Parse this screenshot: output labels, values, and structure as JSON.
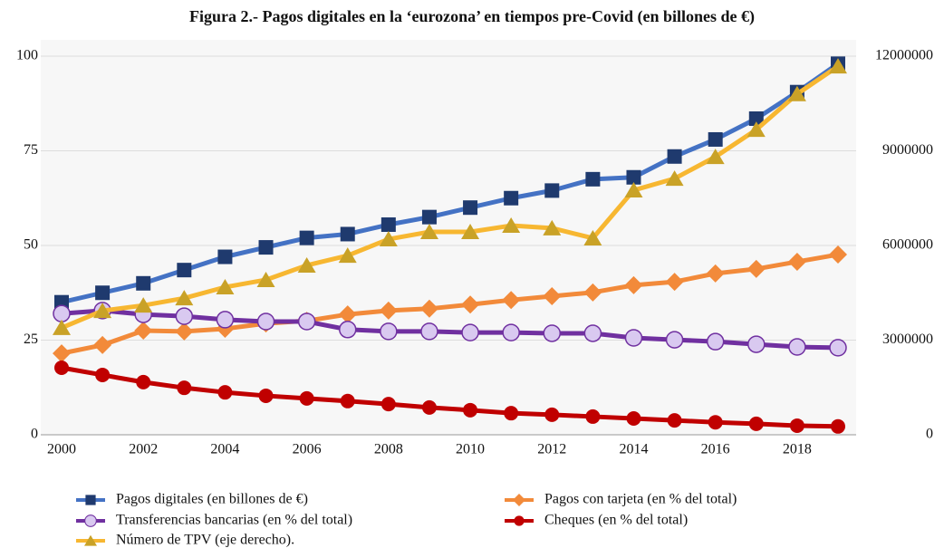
{
  "chart_data": {
    "type": "line",
    "title": "Figura 2.- Pagos digitales en la ‘eurozona’ en tiempos pre-Covid (en billones de €)",
    "x": [
      2000,
      2001,
      2002,
      2003,
      2004,
      2005,
      2006,
      2007,
      2008,
      2009,
      2010,
      2011,
      2012,
      2013,
      2014,
      2015,
      2016,
      2017,
      2018,
      2019
    ],
    "xlim": [
      2000,
      2019
    ],
    "xticks": [
      2000,
      2002,
      2004,
      2006,
      2008,
      2010,
      2012,
      2014,
      2016,
      2018
    ],
    "ylim": [
      0,
      100
    ],
    "yticks": [
      0,
      25,
      50,
      75,
      100
    ],
    "y2lim": [
      0,
      12000000
    ],
    "y2ticks": [
      0,
      3000000,
      6000000,
      9000000,
      12000000
    ],
    "grid": true,
    "legend": "bottom",
    "series": [
      {
        "name": "Pagos digitales (en billones de €)",
        "color": "#4472c4",
        "marker_color": "#1f3a6e",
        "marker": "square",
        "values": [
          35,
          37.5,
          40,
          43.5,
          47,
          49.5,
          52,
          53,
          55.5,
          57.5,
          60,
          62.5,
          64.5,
          67.5,
          68,
          73.5,
          78,
          83.5,
          90.5,
          98
        ]
      },
      {
        "name": "Pagos con tarjeta (en % del total)",
        "color": "#f28a3a",
        "marker_color": "#f28a3a",
        "marker": "diamond",
        "values": [
          21.5,
          23.7,
          27.5,
          27.3,
          28,
          29.4,
          30.1,
          31.8,
          32.8,
          33.3,
          34.4,
          35.6,
          36.6,
          37.6,
          39.5,
          40.4,
          42.6,
          43.8,
          45.7,
          47.6
        ]
      },
      {
        "name": "Transferencias bancarias (en % del total)",
        "color": "#7030a0",
        "marker_color": "#d9c9f0",
        "marker": "circle",
        "values": [
          32,
          32.8,
          31.8,
          31.3,
          30.4,
          29.9,
          29.9,
          27.8,
          27.3,
          27.3,
          27,
          27,
          26.8,
          26.8,
          25.6,
          25.1,
          24.6,
          23.9,
          23.2,
          23
        ]
      },
      {
        "name": "Cheques (en % del total)",
        "color": "#c00000",
        "marker_color": "#c00000",
        "marker": "dot",
        "values": [
          17.7,
          15.8,
          13.9,
          12.4,
          11.2,
          10.3,
          9.6,
          8.9,
          8.1,
          7.2,
          6.5,
          5.7,
          5.3,
          4.8,
          4.3,
          3.8,
          3.3,
          2.9,
          2.4,
          2.2
        ]
      },
      {
        "name": "Número de TPV (eje derecho).",
        "color": "#f7b731",
        "marker_color": "#c9a227",
        "marker": "triangle",
        "axis": "y2",
        "values": [
          3390000,
          3930000,
          4100000,
          4330000,
          4680000,
          4910000,
          5370000,
          5680000,
          6200000,
          6430000,
          6430000,
          6630000,
          6550000,
          6230000,
          7750000,
          8120000,
          8810000,
          9670000,
          10800000,
          11680000
        ]
      }
    ]
  }
}
